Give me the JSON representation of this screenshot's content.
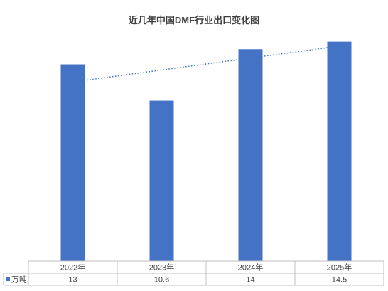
{
  "chart_data": {
    "type": "bar",
    "title": "近几年中国DMF行业出口变化图",
    "categories": [
      "2022年",
      "2023年",
      "2024年",
      "2025年"
    ],
    "series": [
      {
        "name": "万吨",
        "values": [
          13,
          10.6,
          14,
          14.5
        ],
        "value_labels": [
          "13",
          "10.6",
          "14",
          "14.5"
        ]
      }
    ],
    "ylim": [
      0,
      15
    ],
    "grid": false,
    "trendline": {
      "type": "linear",
      "style": "dotted"
    },
    "legend": "data-table-left",
    "data_table": true
  },
  "colors": {
    "bar": "#4472C4",
    "trendline": "#4472C4",
    "table_border": "#BFBFBF",
    "text": "#404040"
  }
}
